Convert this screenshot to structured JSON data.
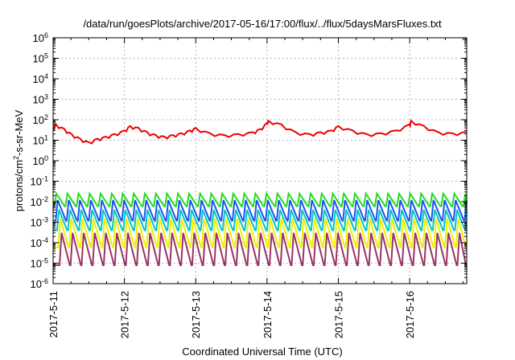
{
  "chart_data": {
    "type": "line",
    "title": "/data/run/goesPlots/archive/2017-05-16/17:00/flux/../flux/5daysMarsFluxes.txt",
    "xlabel": "Coordinated Universal Time (UTC)",
    "ylabel": {
      "prefix": "protons/cm",
      "sup": "2",
      "suffix": "-s-sr-MeV"
    },
    "y_scale": "log",
    "ylim_exp": [
      -6,
      6
    ],
    "y_ticks": [
      {
        "base": "10",
        "exp": "-6"
      },
      {
        "base": "10",
        "exp": "-5"
      },
      {
        "base": "10",
        "exp": "-4"
      },
      {
        "base": "10",
        "exp": "-3"
      },
      {
        "base": "10",
        "exp": "-2"
      },
      {
        "base": "10",
        "exp": "-1"
      },
      {
        "base": "10",
        "exp": "0"
      },
      {
        "base": "10",
        "exp": "1"
      },
      {
        "base": "10",
        "exp": "2"
      },
      {
        "base": "10",
        "exp": "3"
      },
      {
        "base": "10",
        "exp": "4"
      },
      {
        "base": "10",
        "exp": "5"
      },
      {
        "base": "10",
        "exp": "6"
      }
    ],
    "x_ticks": [
      "2017-5-11",
      "2017-5-12",
      "2017-5-13",
      "2017-5-14",
      "2017-5-15",
      "2017-5-16"
    ],
    "xlim_days": [
      0,
      5.8
    ],
    "grid": true,
    "series": [
      {
        "color": "#ee0000",
        "style": "zigzag",
        "x": [
          0.0,
          0.04,
          0.16,
          0.26,
          0.38,
          0.5,
          0.62,
          0.74,
          0.86,
          1.0,
          1.08,
          1.2,
          1.32,
          1.44,
          1.56,
          1.68,
          1.8,
          1.92,
          2.0,
          2.2,
          2.4,
          2.6,
          2.8,
          2.9,
          3.0,
          3.02,
          3.2,
          3.4,
          3.6,
          3.75,
          3.9,
          4.0,
          4.2,
          4.4,
          4.6,
          4.8,
          5.0,
          5.02,
          5.2,
          5.4,
          5.6,
          5.8
        ],
        "y": [
          40,
          60,
          35,
          20,
          12,
          8,
          12,
          15,
          20,
          30,
          50,
          40,
          25,
          18,
          15,
          18,
          22,
          30,
          40,
          22,
          18,
          20,
          25,
          35,
          70,
          90,
          60,
          25,
          20,
          25,
          30,
          50,
          30,
          20,
          22,
          30,
          60,
          90,
          50,
          25,
          22,
          25
        ]
      },
      {
        "color": "#22dd22",
        "style": "sawtooth",
        "x_start": 0.0,
        "x_end": 5.8,
        "period": 0.155,
        "y_peak": 0.025,
        "y_trough": 0.006
      },
      {
        "color": "#1a55ee",
        "style": "sawtooth",
        "x_start": 0.0,
        "x_end": 5.8,
        "period": 0.155,
        "y_peak": 0.012,
        "y_trough": 0.0012
      },
      {
        "color": "#00c8c8",
        "style": "sawtooth",
        "x_start": 0.0,
        "x_end": 5.8,
        "period": 0.155,
        "y_peak": 0.004,
        "y_trough": 0.0004
      },
      {
        "color": "#f0f000",
        "style": "sawtooth",
        "x_start": 0.0,
        "x_end": 5.8,
        "period": 0.155,
        "y_peak": 0.0015,
        "y_trough": 6e-05
      },
      {
        "color": "#993366",
        "style": "sawtooth",
        "x_start": 0.0,
        "x_end": 5.8,
        "period": 0.155,
        "y_peak": 0.0003,
        "y_trough": 8e-06
      }
    ]
  }
}
